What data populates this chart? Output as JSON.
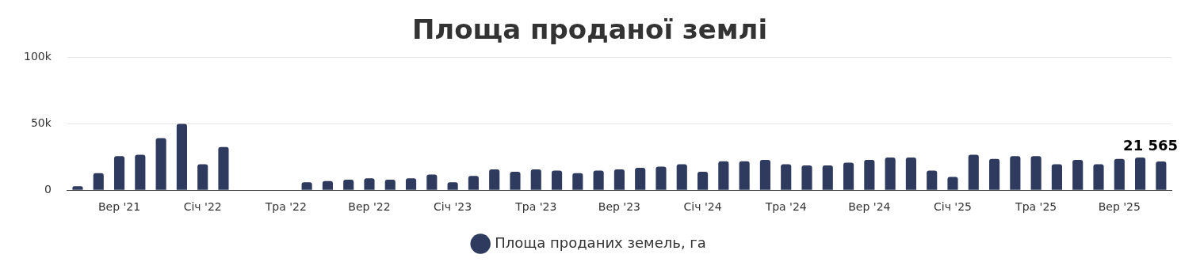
{
  "chart_data": {
    "type": "bar",
    "title": "Площа проданої землі",
    "categories": [
      null,
      null,
      "Вер '21",
      null,
      null,
      null,
      "Січ '22",
      null,
      null,
      null,
      "Тра '22",
      null,
      null,
      null,
      "Вер '22",
      null,
      null,
      null,
      "Січ '23",
      null,
      null,
      null,
      "Тра '23",
      null,
      null,
      null,
      "Вер '23",
      null,
      null,
      null,
      "Січ '24",
      null,
      null,
      null,
      "Тра '24",
      null,
      null,
      null,
      "Вер '24",
      null,
      null,
      null,
      "Січ '25",
      null,
      null,
      null,
      "Тра '25",
      null,
      null,
      null,
      "Вер '25",
      null,
      null
    ],
    "series": [
      {
        "name": "Площа проданих земель, га",
        "color": "#2e3b5e",
        "values": [
          3000,
          12800,
          25700,
          26700,
          39300,
          50000,
          19600,
          32500,
          null,
          null,
          null,
          6000,
          6800,
          7900,
          8900,
          7900,
          8900,
          11800,
          6000,
          10700,
          15700,
          13900,
          15700,
          14700,
          12800,
          14700,
          15700,
          16800,
          17800,
          19600,
          13900,
          21700,
          21700,
          22800,
          19600,
          18600,
          18600,
          20700,
          22800,
          24600,
          24600,
          14700,
          10000,
          26700,
          23600,
          25700,
          25700,
          19600,
          22800,
          19600,
          23600,
          24600,
          21565
        ],
        "value_labels": [
          null,
          null,
          null,
          null,
          null,
          null,
          null,
          null,
          null,
          null,
          null,
          null,
          null,
          null,
          null,
          null,
          null,
          null,
          null,
          null,
          null,
          null,
          null,
          null,
          null,
          null,
          null,
          null,
          null,
          null,
          null,
          null,
          null,
          null,
          null,
          null,
          null,
          null,
          null,
          null,
          null,
          null,
          null,
          null,
          null,
          null,
          null,
          null,
          null,
          null,
          null,
          null,
          "21 565"
        ]
      }
    ],
    "ylim": [
      0,
      100000
    ],
    "yticks": [
      {
        "value": 0,
        "label": "0"
      },
      {
        "value": 50000,
        "label": "50k"
      },
      {
        "value": 100000,
        "label": "100k"
      }
    ],
    "grid": "y",
    "legend": "bottom",
    "marker": "circle"
  }
}
